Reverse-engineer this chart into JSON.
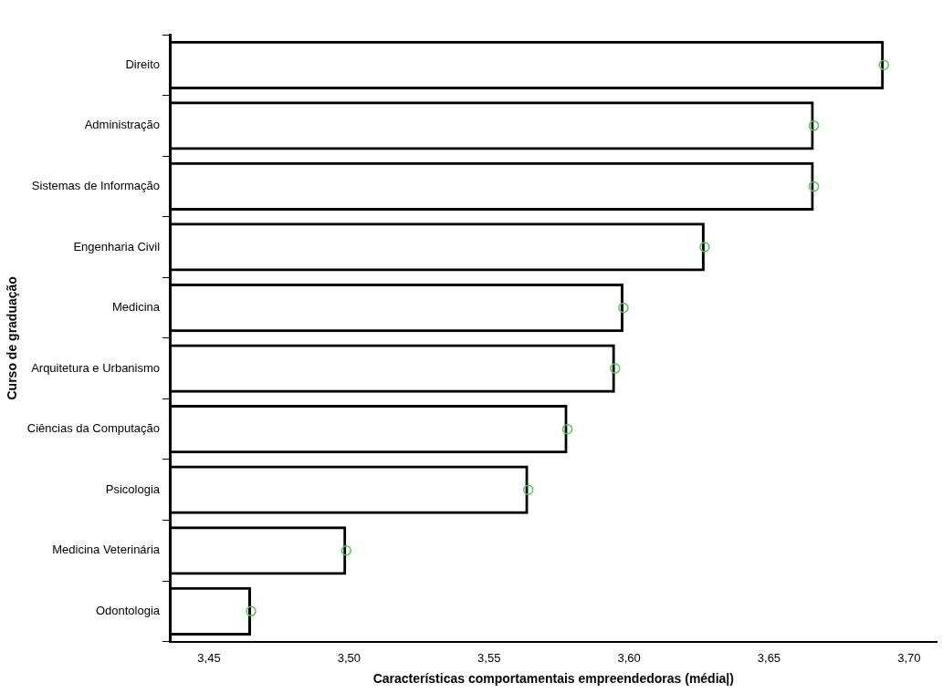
{
  "chart_data": {
    "type": "bar",
    "orientation": "horizontal",
    "xlabel": "Características comportamentais empreendedoras (média|)",
    "ylabel": "Curso de graduação",
    "categories": [
      "Direito",
      "Administração",
      "Sistemas de Informação",
      "Engenharia Civil",
      "Medicina",
      "Arquitetura e Urbanismo",
      "Ciências da Computação",
      "Psicologia",
      "Medicina Veterinária",
      "Odontologia"
    ],
    "series": [
      {
        "color": "#000000",
        "values": [
          3.691,
          3.666,
          3.666,
          3.627,
          3.598,
          3.595,
          3.578,
          3.564,
          3.499,
          3.465
        ]
      },
      {
        "type": "scatter",
        "color": "#4ccc4c",
        "values": [
          3.691,
          3.666,
          3.666,
          3.627,
          3.598,
          3.595,
          3.578,
          3.564,
          3.499,
          3.465
        ]
      }
    ],
    "marker": "circle",
    "xlim": [
      3.436,
      3.71
    ],
    "xticks": [
      {
        "value": 3.45,
        "label": "3,45"
      },
      {
        "value": 3.5,
        "label": "3,50"
      },
      {
        "value": 3.55,
        "label": "3,55"
      },
      {
        "value": 3.6,
        "label": "3,60"
      },
      {
        "value": 3.65,
        "label": "3,65"
      },
      {
        "value": 3.7,
        "label": "3,70"
      }
    ],
    "grid": false,
    "legend": false
  }
}
